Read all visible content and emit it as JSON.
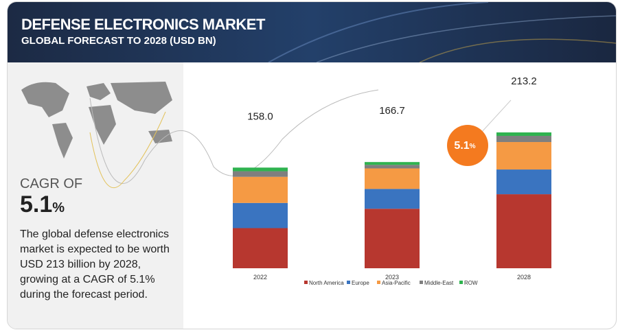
{
  "header": {
    "title": "DEFENSE ELECTRONICS MARKET",
    "subtitle": "GLOBAL FORECAST TO 2028 (USD BN)"
  },
  "cagr": {
    "label": "CAGR OF",
    "value": "5.1",
    "unit": "%"
  },
  "description": "The global defense electronics market is expected to be worth USD 213 billion by 2028, growing at a CAGR of 5.1% during the forecast period.",
  "chart_data": {
    "type": "stacked-bar",
    "categories": [
      "2022",
      "2023",
      "2028"
    ],
    "series": [
      {
        "name": "North America",
        "color": "#b7372f",
        "values": [
          63,
          93.4,
          116.2
        ]
      },
      {
        "name": "Europe",
        "color": "#3a74c0",
        "values": [
          39.5,
          31.1,
          38.8
        ]
      },
      {
        "name": "Asia-Pacific",
        "color": "#f59a44",
        "values": [
          41,
          32.2,
          43.1
        ]
      },
      {
        "name": "Middle-East",
        "color": "#7f7f7f",
        "values": [
          8.8,
          5.6,
          9.7
        ]
      },
      {
        "name": "ROW",
        "color": "#2fb34f",
        "values": [
          5.7,
          4.4,
          5.4
        ]
      }
    ],
    "totals": [
      158,
      166.7,
      213.2
    ],
    "total_labels": [
      "158.0",
      "166.7",
      "213.2"
    ],
    "legend": "bottom"
  }
}
